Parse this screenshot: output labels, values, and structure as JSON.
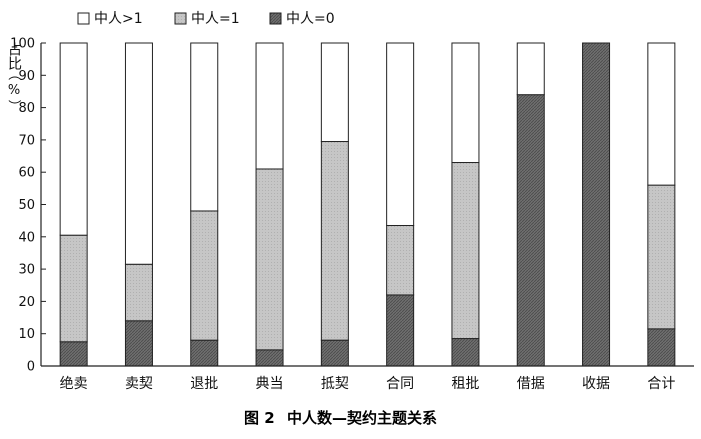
{
  "chart_data": {
    "type": "bar",
    "stacked": true,
    "ylim": [
      0,
      100
    ],
    "yticks": [
      0,
      10,
      20,
      30,
      40,
      50,
      60,
      70,
      80,
      90,
      100
    ],
    "ylabel": [
      "占比",
      "（",
      "%",
      "）"
    ],
    "categories": [
      "绝卖",
      "卖契",
      "退批",
      "典当",
      "抵契",
      "合同",
      "租批",
      "借据",
      "收据",
      "合计"
    ],
    "series": [
      {
        "name": "中人=0",
        "color": "#6f6f6f",
        "values": [
          7.5,
          14,
          8,
          5,
          8,
          22,
          8.5,
          84,
          100,
          11.5
        ]
      },
      {
        "name": "中人=1",
        "color": "#c4c4c4",
        "values": [
          33,
          17.5,
          40,
          56,
          61.5,
          21.5,
          54.5,
          0,
          0,
          44.5
        ]
      },
      {
        "name": "中人>1",
        "color": "#ffffff",
        "values": [
          59.5,
          68.5,
          52,
          39,
          30.5,
          56.5,
          37,
          16,
          0,
          44
        ]
      }
    ],
    "legend_order": [
      "中人>1",
      "中人=1",
      "中人=0"
    ],
    "legend_position": "top-left",
    "grid": false
  },
  "caption": {
    "figure_no": "图 2",
    "title": "中人数—契约主题关系"
  }
}
